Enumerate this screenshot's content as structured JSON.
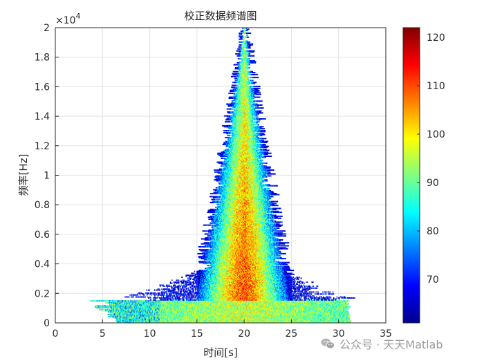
{
  "chart_data": {
    "type": "heatmap",
    "title": "校正数据频谱图",
    "xlabel": "时间[s]",
    "ylabel": "频率[Hz]",
    "xlim": [
      0,
      35
    ],
    "ylim": [
      0,
      20000
    ],
    "x_ticks": [
      0,
      5,
      10,
      15,
      20,
      25,
      30,
      35
    ],
    "x_tick_labels": [
      "0",
      "5",
      "10",
      "15",
      "20",
      "25",
      "30",
      "35"
    ],
    "y_ticks": [
      0,
      2000,
      4000,
      6000,
      8000,
      10000,
      12000,
      14000,
      16000,
      18000,
      20000
    ],
    "y_tick_labels": [
      "0",
      "0.2",
      "0.4",
      "0.6",
      "0.8",
      "1",
      "1.2",
      "1.4",
      "1.6",
      "1.8",
      "2"
    ],
    "y_exponent_label": "×10",
    "y_exponent_power": "4",
    "grid": true,
    "colorbar": {
      "range": [
        61,
        122
      ],
      "ticks": [
        70,
        80,
        90,
        100,
        110,
        120
      ],
      "tick_labels": [
        "70",
        "80",
        "90",
        "100",
        "110",
        "120"
      ],
      "colormap": "jet"
    },
    "spectrogram_profile": {
      "time_range": [
        0,
        31.2
      ],
      "peak_time": 20,
      "max_frequency": 20000,
      "low_band_max_frequency": 1500,
      "low_band_level": 88,
      "core_peak_level": 112,
      "edge_level": 72
    }
  },
  "watermark": {
    "text": "公众号 · 天天Matlab",
    "icon": "wechat-icon"
  }
}
